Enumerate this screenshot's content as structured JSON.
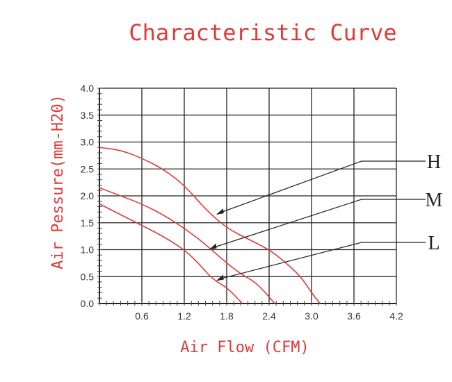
{
  "chart_data": {
    "type": "line",
    "title": "Characteristic Curve",
    "xlabel": "Air Flow (CFM)",
    "ylabel": "Air Pessure(mm-H20)",
    "xlim": [
      0,
      4.2
    ],
    "ylim": [
      0,
      4.0
    ],
    "x_ticks": [
      "0.6",
      "1.2",
      "1.8",
      "2.4",
      "3.0",
      "3.6",
      "4.2"
    ],
    "y_ticks": [
      "0.0",
      "0.5",
      "1.0",
      "1.5",
      "2.0",
      "2.5",
      "3.0",
      "3.5",
      "4.0"
    ],
    "grid": true,
    "series": [
      {
        "name": "H",
        "color": "#e03a3a",
        "points": [
          [
            0,
            2.9
          ],
          [
            0.3,
            2.85
          ],
          [
            0.6,
            2.7
          ],
          [
            0.9,
            2.5
          ],
          [
            1.2,
            2.2
          ],
          [
            1.5,
            1.75
          ],
          [
            1.8,
            1.4
          ],
          [
            2.1,
            1.2
          ],
          [
            2.4,
            1.0
          ],
          [
            2.6,
            0.8
          ],
          [
            2.85,
            0.5
          ],
          [
            3.0,
            0.2
          ],
          [
            3.12,
            0.0
          ]
        ]
      },
      {
        "name": "M",
        "color": "#e03a3a",
        "points": [
          [
            0,
            2.15
          ],
          [
            0.3,
            2.0
          ],
          [
            0.6,
            1.85
          ],
          [
            0.9,
            1.65
          ],
          [
            1.2,
            1.4
          ],
          [
            1.5,
            1.1
          ],
          [
            1.8,
            0.75
          ],
          [
            2.0,
            0.55
          ],
          [
            2.2,
            0.4
          ],
          [
            2.35,
            0.2
          ],
          [
            2.48,
            0.0
          ]
        ]
      },
      {
        "name": "L",
        "color": "#e03a3a",
        "points": [
          [
            0,
            1.85
          ],
          [
            0.3,
            1.65
          ],
          [
            0.6,
            1.45
          ],
          [
            0.9,
            1.25
          ],
          [
            1.2,
            1.0
          ],
          [
            1.4,
            0.75
          ],
          [
            1.6,
            0.45
          ],
          [
            1.8,
            0.3
          ],
          [
            1.95,
            0.1
          ],
          [
            2.02,
            0.0
          ]
        ]
      }
    ],
    "callouts": [
      {
        "label": "H",
        "target": [
          1.65,
          1.65
        ]
      },
      {
        "label": "M",
        "target": [
          1.55,
          1.0
        ]
      },
      {
        "label": "L",
        "target": [
          1.65,
          0.42
        ]
      }
    ]
  }
}
